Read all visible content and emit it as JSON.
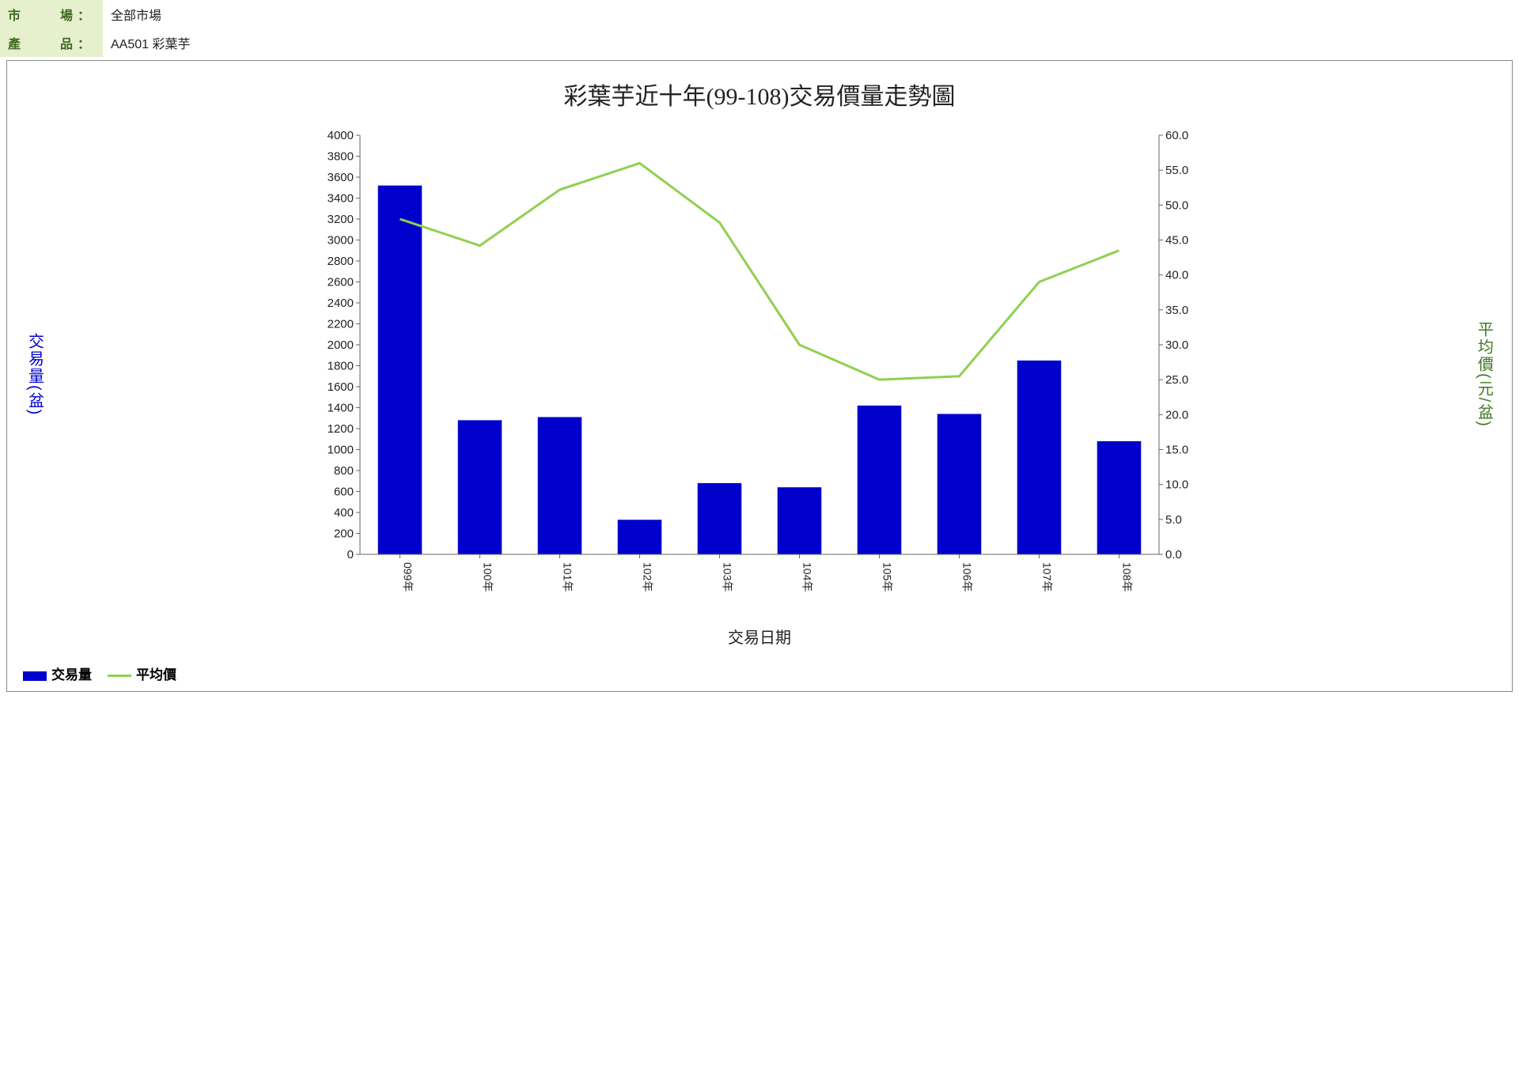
{
  "header": {
    "market_label": "市　　場：",
    "market_value": "全部市場",
    "product_label": "產　　品：",
    "product_value": "AA501 彩葉芋"
  },
  "chart": {
    "type": "bar+line",
    "title": "彩葉芋近十年(99-108)交易價量走勢圖",
    "x_axis_label": "交易日期",
    "y_left_label": "交易量(盆)",
    "y_right_label": "平均價(元/盆)",
    "categories": [
      "099年",
      "100年",
      "101年",
      "102年",
      "103年",
      "104年",
      "105年",
      "106年",
      "107年",
      "108年"
    ],
    "bar_values": [
      3520,
      1280,
      1310,
      330,
      680,
      640,
      1420,
      1340,
      1850,
      1080
    ],
    "line_values": [
      48.0,
      44.2,
      52.2,
      56.0,
      47.5,
      30.0,
      25.0,
      25.5,
      39.0,
      43.5
    ],
    "y_left": {
      "min": 0,
      "max": 4000,
      "step": 200
    },
    "y_right": {
      "min": 0,
      "max": 60,
      "step": 5
    },
    "colors": {
      "bar": "#0000cd",
      "line": "#8fd14f",
      "axis": "#666666",
      "tick_text": "#222222",
      "right_tick_text": "#222222",
      "background": "#ffffff"
    },
    "bar_width_ratio": 0.55,
    "legend": {
      "bar_label": "交易量",
      "line_label": "平均價"
    },
    "tick_fontsize": 15,
    "cat_fontsize": 14
  }
}
